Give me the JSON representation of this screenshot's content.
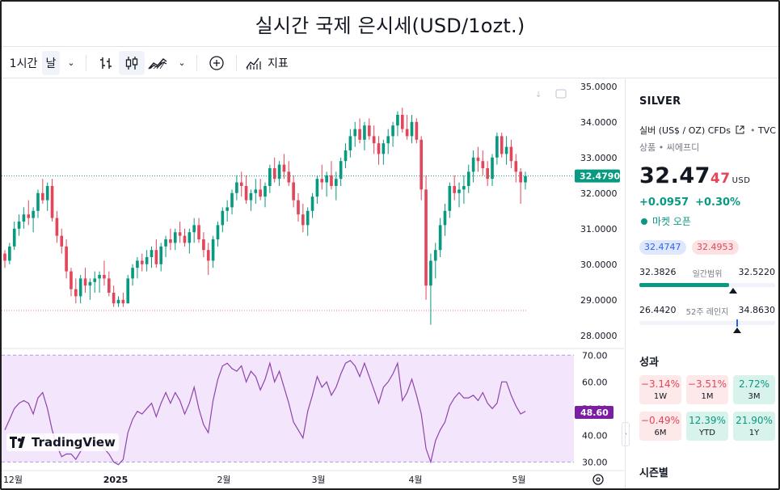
{
  "window": {
    "title": "실시간 국제 은시세(USD/1ozt.)"
  },
  "toolbar": {
    "interval": "1시간",
    "range": "날",
    "chevron": "⌄",
    "indicators": "지표"
  },
  "chart_data": {
    "type": "candlestick",
    "price_axis": {
      "labels": [
        "35.0000",
        "34.0000",
        "33.0000",
        "32.0000",
        "31.0000",
        "30.0000",
        "29.0000",
        "28.0000"
      ],
      "ylim": [
        27.7,
        35.2
      ]
    },
    "rsi_axis": {
      "labels": [
        "70.00",
        "60.00",
        "50.00",
        "40.00",
        "30.00"
      ],
      "ylim": [
        28,
        71
      ]
    },
    "x_tick_labels": [
      "12월",
      "2025",
      "2월",
      "3월",
      "4월",
      "5월"
    ],
    "last_price_label": "32.4790",
    "rsi_label": "48.60",
    "candles": [
      [
        30.3,
        30.4,
        29.9,
        30.1
      ],
      [
        30.1,
        30.6,
        30.0,
        30.5
      ],
      [
        30.5,
        31.2,
        30.4,
        31.0
      ],
      [
        31.0,
        31.4,
        30.8,
        31.2
      ],
      [
        31.2,
        31.6,
        31.0,
        31.4
      ],
      [
        31.4,
        31.8,
        31.1,
        31.3
      ],
      [
        31.3,
        31.6,
        30.9,
        31.5
      ],
      [
        31.5,
        32.1,
        31.3,
        32.0
      ],
      [
        32.0,
        32.4,
        31.7,
        31.8
      ],
      [
        31.8,
        32.3,
        31.5,
        32.2
      ],
      [
        32.2,
        32.4,
        31.2,
        31.3
      ],
      [
        31.3,
        31.5,
        30.6,
        30.8
      ],
      [
        30.8,
        31.0,
        30.3,
        30.5
      ],
      [
        30.5,
        30.7,
        29.6,
        29.8
      ],
      [
        29.8,
        29.9,
        29.1,
        29.3
      ],
      [
        29.3,
        29.6,
        28.9,
        29.1
      ],
      [
        29.1,
        29.7,
        28.9,
        29.6
      ],
      [
        29.6,
        29.9,
        29.2,
        29.4
      ],
      [
        29.4,
        29.6,
        29.0,
        29.5
      ],
      [
        29.5,
        29.8,
        29.2,
        29.6
      ],
      [
        29.6,
        29.8,
        29.2,
        29.7
      ],
      [
        29.7,
        30.1,
        29.4,
        29.6
      ],
      [
        29.6,
        29.8,
        29.1,
        29.2
      ],
      [
        29.2,
        29.4,
        28.8,
        28.9
      ],
      [
        28.9,
        29.1,
        28.8,
        29.0
      ],
      [
        29.0,
        29.2,
        28.8,
        28.9
      ],
      [
        28.9,
        29.7,
        28.9,
        29.6
      ],
      [
        29.6,
        30.0,
        29.4,
        29.9
      ],
      [
        29.9,
        30.2,
        29.6,
        30.1
      ],
      [
        30.1,
        30.3,
        29.8,
        30.0
      ],
      [
        30.0,
        30.4,
        29.8,
        30.2
      ],
      [
        30.2,
        30.5,
        29.9,
        30.4
      ],
      [
        30.4,
        30.7,
        29.9,
        30.0
      ],
      [
        30.0,
        30.6,
        29.8,
        30.5
      ],
      [
        30.5,
        30.8,
        30.2,
        30.7
      ],
      [
        30.7,
        31.0,
        30.4,
        30.6
      ],
      [
        30.6,
        31.0,
        30.4,
        30.9
      ],
      [
        30.9,
        31.2,
        30.6,
        30.8
      ],
      [
        30.8,
        31.0,
        30.5,
        30.6
      ],
      [
        30.6,
        31.0,
        30.3,
        30.9
      ],
      [
        30.9,
        31.3,
        30.6,
        31.1
      ],
      [
        31.1,
        31.3,
        30.6,
        30.7
      ],
      [
        30.7,
        30.9,
        30.2,
        30.4
      ],
      [
        30.4,
        30.6,
        29.7,
        30.1
      ],
      [
        30.1,
        30.8,
        29.9,
        30.7
      ],
      [
        30.7,
        31.2,
        30.5,
        31.1
      ],
      [
        31.1,
        31.6,
        30.9,
        31.5
      ],
      [
        31.5,
        31.8,
        31.2,
        31.6
      ],
      [
        31.6,
        32.1,
        31.4,
        32.0
      ],
      [
        32.0,
        32.5,
        31.8,
        32.3
      ],
      [
        32.3,
        32.6,
        31.9,
        32.2
      ],
      [
        32.2,
        32.5,
        31.7,
        31.8
      ],
      [
        31.8,
        32.1,
        31.5,
        32.0
      ],
      [
        32.0,
        32.4,
        31.7,
        32.1
      ],
      [
        32.1,
        32.4,
        31.8,
        31.9
      ],
      [
        31.9,
        32.3,
        31.6,
        32.2
      ],
      [
        32.2,
        32.8,
        32.0,
        32.7
      ],
      [
        32.7,
        33.0,
        32.3,
        32.4
      ],
      [
        32.4,
        32.9,
        32.2,
        32.8
      ],
      [
        32.8,
        33.1,
        32.4,
        32.6
      ],
      [
        32.6,
        32.9,
        32.2,
        32.3
      ],
      [
        32.3,
        32.5,
        31.6,
        31.8
      ],
      [
        31.8,
        32.0,
        31.2,
        31.4
      ],
      [
        31.4,
        31.7,
        30.9,
        31.1
      ],
      [
        31.1,
        31.6,
        30.8,
        31.5
      ],
      [
        31.5,
        32.0,
        31.3,
        31.9
      ],
      [
        31.9,
        32.5,
        31.7,
        32.4
      ],
      [
        32.4,
        32.8,
        32.1,
        32.3
      ],
      [
        32.3,
        32.6,
        31.9,
        32.5
      ],
      [
        32.5,
        32.9,
        32.1,
        32.2
      ],
      [
        32.2,
        32.6,
        31.8,
        32.4
      ],
      [
        32.4,
        33.0,
        32.2,
        32.9
      ],
      [
        32.9,
        33.4,
        32.7,
        33.2
      ],
      [
        33.2,
        33.8,
        33.0,
        33.6
      ],
      [
        33.6,
        34.0,
        33.3,
        33.8
      ],
      [
        33.8,
        34.1,
        33.4,
        33.5
      ],
      [
        33.5,
        34.0,
        33.2,
        33.9
      ],
      [
        33.9,
        34.1,
        33.5,
        33.6
      ],
      [
        33.6,
        33.9,
        33.1,
        33.4
      ],
      [
        33.4,
        33.6,
        32.8,
        33.1
      ],
      [
        33.1,
        33.5,
        32.8,
        33.4
      ],
      [
        33.4,
        33.8,
        33.1,
        33.6
      ],
      [
        33.6,
        34.0,
        33.3,
        33.9
      ],
      [
        33.9,
        34.3,
        33.6,
        34.2
      ],
      [
        34.2,
        34.4,
        33.7,
        33.8
      ],
      [
        33.8,
        34.2,
        33.5,
        33.6
      ],
      [
        33.6,
        34.2,
        33.4,
        34.0
      ],
      [
        34.0,
        34.1,
        33.4,
        33.5
      ],
      [
        33.5,
        33.6,
        31.8,
        32.1
      ],
      [
        32.1,
        32.5,
        29.0,
        29.4
      ],
      [
        29.4,
        30.3,
        28.3,
        30.1
      ],
      [
        30.1,
        30.6,
        29.6,
        30.4
      ],
      [
        30.4,
        31.3,
        30.2,
        31.1
      ],
      [
        31.1,
        31.7,
        30.8,
        31.5
      ],
      [
        31.5,
        32.3,
        31.3,
        32.2
      ],
      [
        32.2,
        32.5,
        31.8,
        32.0
      ],
      [
        32.0,
        32.3,
        31.6,
        32.1
      ],
      [
        32.1,
        32.5,
        31.7,
        32.2
      ],
      [
        32.2,
        32.8,
        32.0,
        32.6
      ],
      [
        32.6,
        33.2,
        32.3,
        33.0
      ],
      [
        33.0,
        33.3,
        32.6,
        32.9
      ],
      [
        32.9,
        33.2,
        32.5,
        32.7
      ],
      [
        32.7,
        32.9,
        32.2,
        32.4
      ],
      [
        32.4,
        33.1,
        32.2,
        33.0
      ],
      [
        33.0,
        33.7,
        32.8,
        33.6
      ],
      [
        33.6,
        33.7,
        33.0,
        33.1
      ],
      [
        33.1,
        33.6,
        32.8,
        33.3
      ],
      [
        33.3,
        33.5,
        32.7,
        32.9
      ],
      [
        32.9,
        33.1,
        32.3,
        32.6
      ],
      [
        32.6,
        32.7,
        31.7,
        32.3
      ],
      [
        32.3,
        32.6,
        32.1,
        32.48
      ]
    ],
    "rsi": [
      42,
      46,
      50,
      52,
      53,
      52,
      48,
      54,
      56,
      50,
      42,
      36,
      32,
      33,
      33,
      31,
      34,
      37,
      36,
      38,
      37,
      35,
      33,
      30,
      29,
      31,
      41,
      46,
      49,
      48,
      50,
      52,
      47,
      52,
      56,
      52,
      56,
      53,
      48,
      52,
      58,
      50,
      44,
      41,
      53,
      61,
      66,
      67,
      65,
      64,
      66,
      60,
      64,
      62,
      57,
      61,
      67,
      60,
      64,
      58,
      52,
      45,
      42,
      39,
      49,
      55,
      62,
      58,
      60,
      55,
      58,
      63,
      67,
      68,
      66,
      62,
      67,
      62,
      57,
      52,
      58,
      60,
      63,
      67,
      53,
      56,
      61,
      55,
      48,
      35,
      30,
      38,
      42,
      45,
      51,
      54,
      56,
      54,
      54,
      55,
      53,
      56,
      52,
      50,
      52,
      60,
      60,
      55,
      51,
      48,
      49
    ],
    "baseline_dotted": 28.7
  },
  "panel": {
    "symbol": "SILVER",
    "description": "실버 (US$ / OZ) CFDs",
    "source": "TVC",
    "category": "상품 • 씨에프디",
    "price_main": "32.47",
    "price_sup": "47",
    "currency": "USD",
    "change_abs": "+0.0957",
    "change_pct": "+0.30%",
    "market_status": "마켓 오픈",
    "bid": "32.4747",
    "ask": "32.4953",
    "day_low": "32.3826",
    "day_range_label": "일간범위",
    "day_high": "32.5220",
    "day_range_position": 0.66,
    "week52_low": "26.4420",
    "week52_label": "52주 레인지",
    "week52_high": "34.8630",
    "week52_position": 0.72,
    "performance_title": "성과",
    "performance": [
      {
        "value": "−3.14%",
        "label": "1W",
        "dir": "neg"
      },
      {
        "value": "−3.51%",
        "label": "1M",
        "dir": "neg"
      },
      {
        "value": "2.72%",
        "label": "3M",
        "dir": "pos"
      },
      {
        "value": "−0.49%",
        "label": "6M",
        "dir": "neg"
      },
      {
        "value": "12.39%",
        "label": "YTD",
        "dir": "pos"
      },
      {
        "value": "21.90%",
        "label": "1Y",
        "dir": "pos"
      }
    ],
    "seasonal_title": "시즌별"
  },
  "branding": {
    "logo_text": "TradingView"
  },
  "colors": {
    "up": "#089981",
    "down": "#e2465a",
    "rsi_line": "#8e44ad",
    "rsi_band": "#f3e5fb",
    "rsi_label_bg": "#7b1fa2",
    "last_price_bg": "#089981"
  }
}
